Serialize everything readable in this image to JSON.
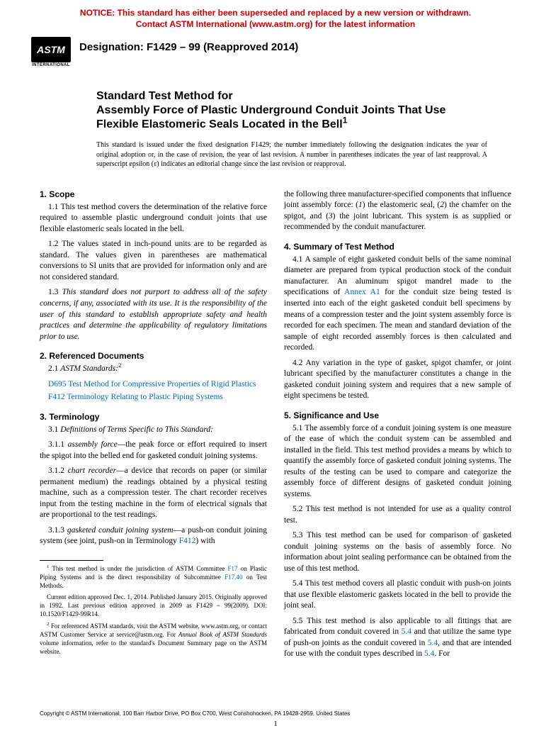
{
  "notice": {
    "line1": "NOTICE: This standard has either been superseded and replaced by a new version or withdrawn.",
    "line2": "Contact ASTM International (www.astm.org) for the latest information"
  },
  "logo": {
    "text": "ASTM",
    "subtext": "INTERNATIONAL"
  },
  "designation": "Designation: F1429 – 99 (Reapproved 2014)",
  "title": {
    "kicker": "Standard Test Method for",
    "main": "Assembly Force of Plastic Underground Conduit Joints That Use Flexible Elastomeric Seals Located in the Bell",
    "sup": "1",
    "note": "This standard is issued under the fixed designation F1429; the number immediately following the designation indicates the year of original adoption or, in the case of revision, the year of last revision. A number in parentheses indicates the year of last reapproval. A superscript epsilon (ε) indicates an editorial change since the last revision or reapproval."
  },
  "s1": {
    "head": "1. Scope",
    "p1": "1.1 This test method covers the determination of the relative force required to assemble plastic underground conduit joints that use flexible elastomeric seals located in the bell.",
    "p2": "1.2 The values stated in inch-pound units are to be regarded as standard. The values given in parentheses are mathematical conversions to SI units that are provided for information only and are not considered standard.",
    "p3_prefix": "1.3 ",
    "p3_ital": "This standard does not purport to address all of the safety concerns, if any, associated with its use. It is the responsibility of the user of this standard to establish appropriate safety and health practices and determine the applicability of regulatory limitations prior to use."
  },
  "s2": {
    "head": "2. Referenced Documents",
    "p1_prefix": "2.1 ",
    "p1_ital": "ASTM Standards:",
    "p1_sup": "2",
    "ref1_code": "D695",
    "ref1_text": " Test Method for Compressive Properties of Rigid Plastics",
    "ref2_code": "F412",
    "ref2_text": " Terminology Relating to Plastic Piping Systems"
  },
  "s3": {
    "head": "3. Terminology",
    "p1_prefix": "3.1 ",
    "p1_ital": "Definitions of Terms Specific to This Standard:",
    "p2_prefix": "3.1.1 ",
    "p2_term": "assembly force",
    "p2_rest": "—the peak force or effort required to insert the spigot into the belled end for gasketed conduit joining systems.",
    "p3_prefix": "3.1.2 ",
    "p3_term": "chart recorder",
    "p3_rest": "—a device that records on paper (or similar permanent medium) the readings obtained by a physical testing machine, such as a compression tester. The chart recorder receives input from the testing machine in the form of electrical signals that are proportional to the test readings.",
    "p4_prefix": "3.1.3 ",
    "p4_term": "gasketed conduit joining system",
    "p4_rest_a": "—a push-on conduit joining system (see joint, push-on in Terminology ",
    "p4_link": "F412",
    "p4_rest_b": ") with"
  },
  "col2_top": {
    "cont_a": "the following three manufacturer-specified components that influence joint assembly force: (",
    "i1": "1",
    "cont_b": ") the elastomeric seal, (",
    "i2": "2",
    "cont_c": ") the chamfer on the spigot, and (",
    "i3": "3",
    "cont_d": ") the joint lubricant. This system is as supplied or recommended by the conduit manufacturer."
  },
  "s4": {
    "head": "4. Summary of Test Method",
    "p1_a": "4.1 A sample of eight gasketed conduit bells of the same nominal diameter are prepared from typical production stock of the conduit manufacturer. An aluminum spigot mandrel made to the specifications of ",
    "p1_link": "Annex A1",
    "p1_b": " for the conduit size being tested is inserted into each of the eight gasketed conduit bell specimens by means of a compression tester and the joint system assembly force is recorded for each specimen. The mean and standard deviation of the sample of eight recorded assembly forces is then calculated and recorded.",
    "p2": "4.2 Any variation in the type of gasket, spigot chamfer, or joint lubricant specified by the manufacturer constitutes a change in the gasketed conduit joining system and requires that a new sample of eight specimens be tested."
  },
  "s5": {
    "head": "5. Significance and Use",
    "p1": "5.1 The assembly force of a conduit joining system is one measure of the ease of which the conduit system can be assembled and installed in the field. This test method provides a means by which to quantify the assembly force of gasketed conduit joining systems. The results of the testing can be used to compare and categorize the assembly force of different designs of gasketed conduit joining systems.",
    "p2": "5.2 This test method is not intended for use as a quality control test.",
    "p3": "5.3 This test method can be used for comparison of gasketed conduit joining systems on the basis of assembly force. No information about joint sealing performance can be obtained from the use of this test method.",
    "p4": "5.4 This test method covers all plastic conduit with push-on joints that use flexible elastomeric gaskets located in the bell to provide the joint seal.",
    "p5_a": "5.5 This test method is also applicable to all fittings that are fabricated from conduit covered in ",
    "p5_l1": "5.4",
    "p5_b": " and that utilize the same type of push-on joints as the conduit covered in ",
    "p5_l2": "5.4",
    "p5_c": ", and that are intended for use with the conduit types described in ",
    "p5_l3": "5.4",
    "p5_d": ". For"
  },
  "footnotes": {
    "f1_a": " This test method is under the jurisdiction of ASTM Committee ",
    "f1_l1": "F17",
    "f1_b": " on Plastic Piping Systems and is the direct responsibility of Subcommittee ",
    "f1_l2": "F17.40",
    "f1_c": " on Test Methods.",
    "f1_d": "Current edition approved Dec. 1, 2014. Published January 2015. Originally approved in 1992. Last previous edition approved in 2009 as F1429 – 99(2009). DOI: 10.1520/F1429-99R14.",
    "f2_a": " For referenced ASTM standards, visit the ASTM website, www.astm.org, or contact ASTM Customer Service at service@astm.org. For ",
    "f2_ital": "Annual Book of ASTM Standards",
    "f2_b": " volume information, refer to the standard's Document Summary page on the ASTM website."
  },
  "copyright": "Copyright © ASTM International, 100 Barr Harbor Drive, PO Box C700, West Conshohocken, PA 19428-2959. United States",
  "pagenum": "1"
}
